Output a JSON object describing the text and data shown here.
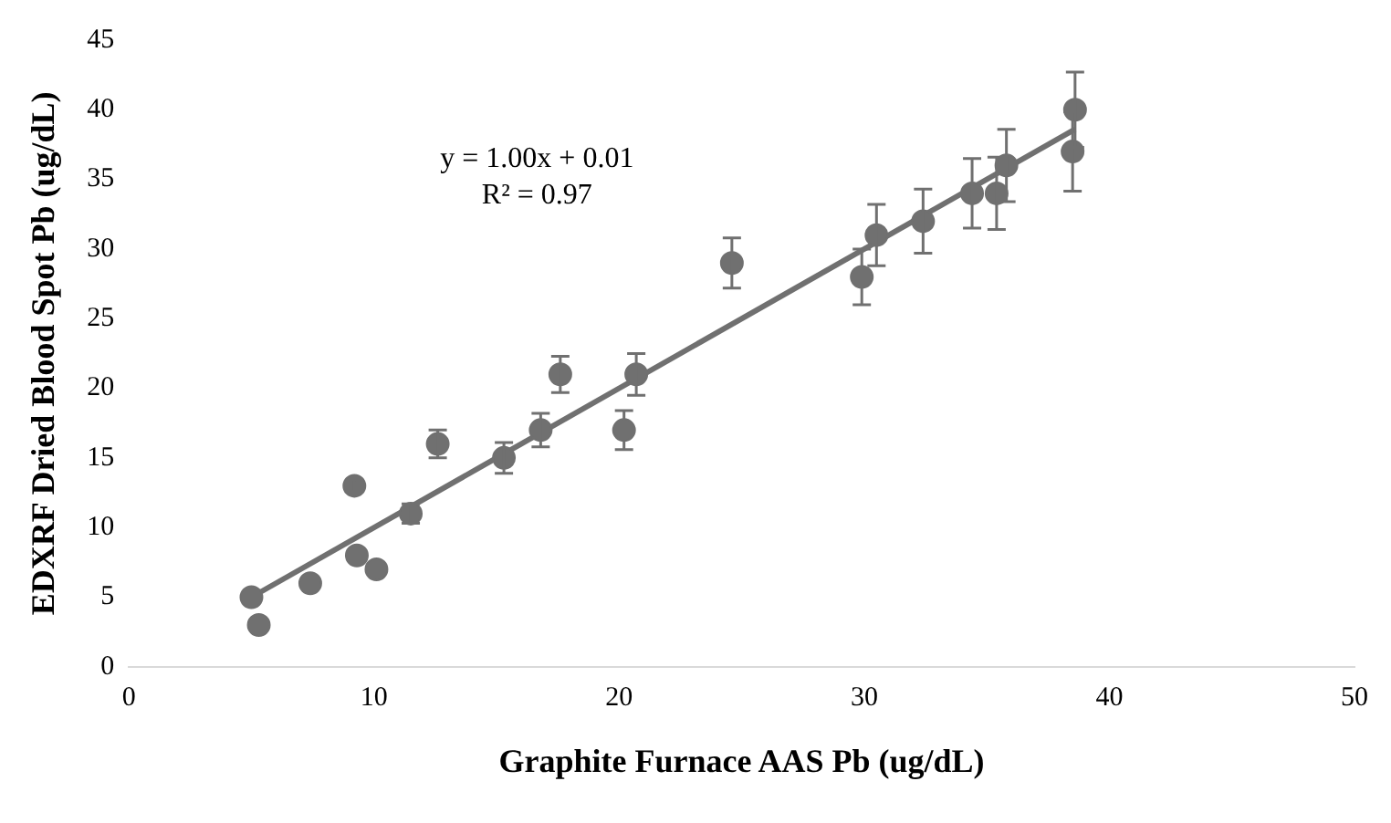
{
  "chart_data": {
    "type": "scatter",
    "xlabel": "Graphite Furnace AAS Pb (ug/dL)",
    "ylabel": "EDXRF Dried Blood Spot Pb (ug/dL)",
    "xlim": [
      0,
      50
    ],
    "xticks": [
      0,
      10,
      20,
      30,
      40,
      50
    ],
    "ylim": [
      0,
      45
    ],
    "yticks": [
      0,
      5,
      10,
      15,
      20,
      25,
      30,
      35,
      40,
      45
    ],
    "grid": false,
    "legend": false,
    "annotations": [
      "y = 1.00x + 0.01",
      "R² = 0.97"
    ],
    "series": [
      {
        "marker": "circle",
        "color": "#707070",
        "x": [
          5.0,
          5.3,
          7.4,
          9.2,
          9.3,
          10.1,
          11.5,
          12.6,
          15.3,
          16.8,
          17.6,
          20.2,
          20.7,
          24.6,
          29.9,
          30.5,
          32.4,
          34.4,
          35.4,
          35.8,
          38.5,
          38.6
        ],
        "values": [
          5,
          3,
          6,
          13,
          8,
          7,
          11,
          16,
          15,
          17,
          21,
          17,
          21,
          29,
          28,
          31,
          32,
          34,
          34,
          36,
          37,
          40
        ],
        "errors": [
          null,
          null,
          null,
          0.4,
          null,
          null,
          0.7,
          1.0,
          1.1,
          1.2,
          1.3,
          1.4,
          1.5,
          1.8,
          2.0,
          2.2,
          2.3,
          2.5,
          2.6,
          2.6,
          2.85,
          2.7
        ]
      },
      {
        "type": "line",
        "marker": "none",
        "color": "#707070",
        "x": [
          5.0,
          38.6
        ],
        "values": [
          5.0,
          38.6
        ]
      }
    ]
  }
}
